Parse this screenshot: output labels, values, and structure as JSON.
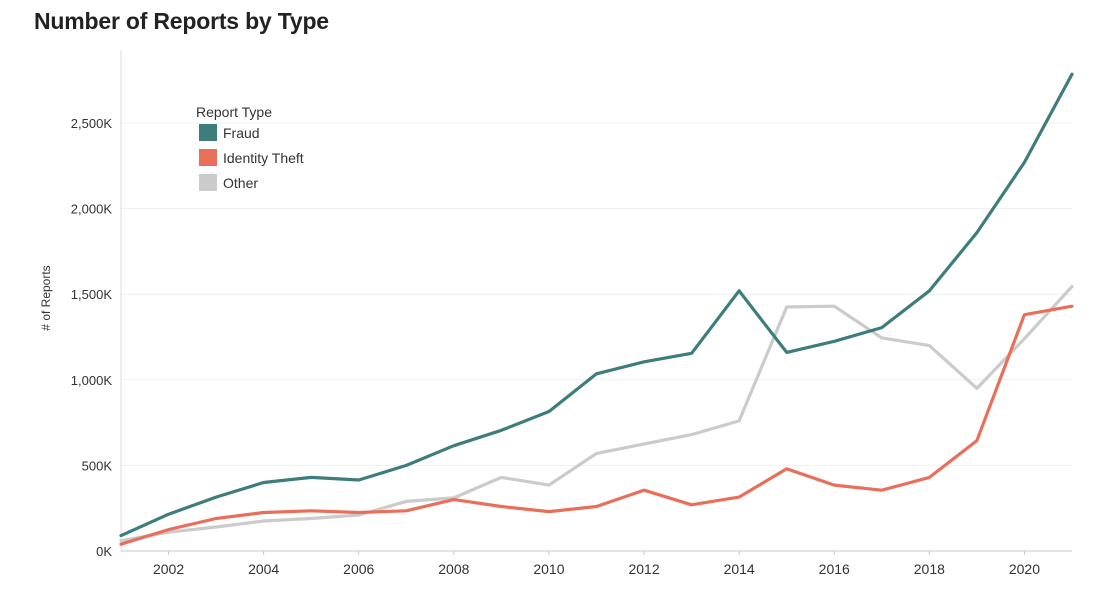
{
  "chart_data": {
    "type": "line",
    "title": "Number of Reports by Type",
    "ylabel": "# of Reports",
    "xlabel": "",
    "x": [
      2001,
      2002,
      2003,
      2004,
      2005,
      2006,
      2007,
      2008,
      2009,
      2010,
      2011,
      2012,
      2013,
      2014,
      2015,
      2016,
      2017,
      2018,
      2019,
      2020,
      2021
    ],
    "x_ticks": [
      {
        "value": 2002,
        "label": "2002"
      },
      {
        "value": 2004,
        "label": "2004"
      },
      {
        "value": 2006,
        "label": "2006"
      },
      {
        "value": 2008,
        "label": "2008"
      },
      {
        "value": 2010,
        "label": "2010"
      },
      {
        "value": 2012,
        "label": "2012"
      },
      {
        "value": 2014,
        "label": "2014"
      },
      {
        "value": 2016,
        "label": "2016"
      },
      {
        "value": 2018,
        "label": "2018"
      },
      {
        "value": 2020,
        "label": "2020"
      }
    ],
    "y_ticks": [
      {
        "value": 0,
        "label": "0K"
      },
      {
        "value": 500,
        "label": "500K"
      },
      {
        "value": 1000,
        "label": "1,000K"
      },
      {
        "value": 1500,
        "label": "1,500K"
      },
      {
        "value": 2000,
        "label": "2,000K"
      },
      {
        "value": 2500,
        "label": "2,500K"
      }
    ],
    "xlim": [
      2001,
      2021
    ],
    "ylim": [
      0,
      2900
    ],
    "y_unit": "thousands of reports",
    "grid": "horizontal",
    "legend": {
      "title": "Report Type",
      "placement": "top-left"
    },
    "series": [
      {
        "name": "Fraud",
        "color": "#3d7d7c",
        "values": [
          90,
          215,
          315,
          400,
          430,
          415,
          500,
          615,
          705,
          815,
          1035,
          1105,
          1155,
          1520,
          1160,
          1225,
          1305,
          1520,
          1860,
          2270,
          2785
        ]
      },
      {
        "name": "Identity Theft",
        "color": "#e8705a",
        "values": [
          40,
          125,
          190,
          225,
          235,
          225,
          235,
          300,
          260,
          230,
          260,
          355,
          270,
          315,
          480,
          385,
          355,
          430,
          645,
          1380,
          1430
        ]
      },
      {
        "name": "Other",
        "color": "#cbcbcb",
        "values": [
          60,
          110,
          140,
          175,
          190,
          210,
          290,
          310,
          430,
          385,
          570,
          625,
          680,
          760,
          1425,
          1430,
          1245,
          1200,
          950,
          1240,
          1545
        ]
      }
    ]
  }
}
